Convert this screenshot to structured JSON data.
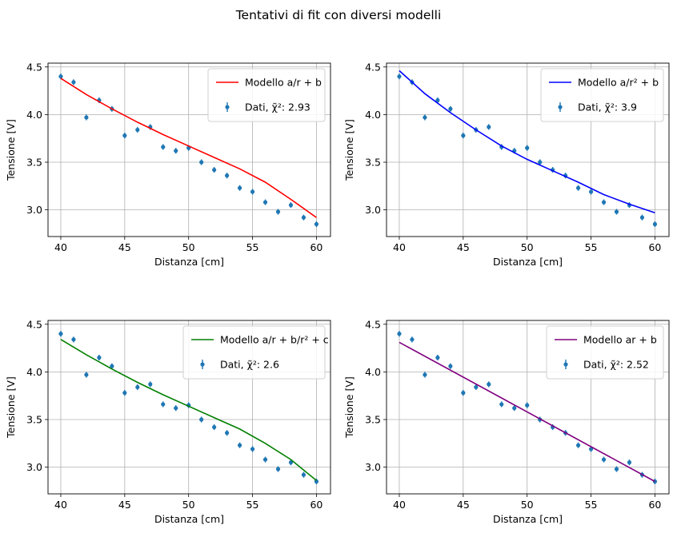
{
  "figure": {
    "suptitle": "Tentativi di fit con diversi modelli"
  },
  "chart_data": [
    {
      "type": "scatter",
      "xlabel": "Distanza [cm]",
      "ylabel": "Tensione [V]",
      "xlim": [
        39,
        61.1
      ],
      "ylim": [
        2.72,
        4.54
      ],
      "xticks": [
        "40",
        "45",
        "50",
        "55",
        "60"
      ],
      "yticks": [
        "3.0",
        "3.5",
        "4.0",
        "4.5"
      ],
      "grid": true,
      "legend_position": "top-right",
      "series": [
        {
          "name": "Dati, χ̃²: 2.93",
          "kind": "errorbar",
          "color": "#1f77b4",
          "x": [
            40,
            41,
            42,
            43,
            44,
            45,
            46,
            47,
            48,
            49,
            50,
            51,
            52,
            53,
            54,
            55,
            56,
            57,
            58,
            59,
            60
          ],
          "y": [
            4.4,
            4.34,
            3.97,
            4.15,
            4.06,
            3.78,
            3.84,
            3.87,
            3.66,
            3.62,
            3.65,
            3.5,
            3.42,
            3.36,
            3.23,
            3.19,
            3.08,
            2.98,
            3.05,
            2.92,
            2.85
          ],
          "yerr": 0.03
        },
        {
          "name": "Modello a/r + b",
          "kind": "line",
          "color": "#ff0000",
          "x": [
            40,
            42,
            44,
            46,
            48,
            50,
            52,
            54,
            56,
            58,
            60
          ],
          "y": [
            4.38,
            4.21,
            4.06,
            3.92,
            3.79,
            3.67,
            3.55,
            3.43,
            3.29,
            3.11,
            2.92
          ]
        }
      ]
    },
    {
      "type": "scatter",
      "xlabel": "Distanza [cm]",
      "ylabel": "Tensione [V]",
      "xlim": [
        39,
        61.1
      ],
      "ylim": [
        2.72,
        4.54
      ],
      "xticks": [
        "40",
        "45",
        "50",
        "55",
        "60"
      ],
      "yticks": [
        "3.0",
        "3.5",
        "4.0",
        "4.5"
      ],
      "grid": true,
      "legend_position": "top-right",
      "series": [
        {
          "name": "Dati, χ̃²: 3.9",
          "kind": "errorbar",
          "color": "#1f77b4",
          "x": [
            40,
            41,
            42,
            43,
            44,
            45,
            46,
            47,
            48,
            49,
            50,
            51,
            52,
            53,
            54,
            55,
            56,
            57,
            58,
            59,
            60
          ],
          "y": [
            4.4,
            4.34,
            3.97,
            4.15,
            4.06,
            3.78,
            3.84,
            3.87,
            3.66,
            3.62,
            3.65,
            3.5,
            3.42,
            3.36,
            3.23,
            3.19,
            3.08,
            2.98,
            3.05,
            2.92,
            2.85
          ],
          "yerr": 0.03
        },
        {
          "name": "Modello a/r² + b",
          "kind": "line",
          "color": "#0000ff",
          "x": [
            40,
            42,
            44,
            46,
            48,
            50,
            52,
            54,
            56,
            58,
            60
          ],
          "y": [
            4.46,
            4.22,
            4.02,
            3.84,
            3.67,
            3.53,
            3.41,
            3.29,
            3.16,
            3.06,
            2.97
          ]
        }
      ]
    },
    {
      "type": "scatter",
      "xlabel": "Distanza [cm]",
      "ylabel": "Tensione [V]",
      "xlim": [
        39,
        61.1
      ],
      "ylim": [
        2.72,
        4.54
      ],
      "xticks": [
        "40",
        "45",
        "50",
        "55",
        "60"
      ],
      "yticks": [
        "3.0",
        "3.5",
        "4.0",
        "4.5"
      ],
      "grid": true,
      "legend_position": "top-right",
      "series": [
        {
          "name": "Dati, χ̃²: 2.6",
          "kind": "errorbar",
          "color": "#1f77b4",
          "x": [
            40,
            41,
            42,
            43,
            44,
            45,
            46,
            47,
            48,
            49,
            50,
            51,
            52,
            53,
            54,
            55,
            56,
            57,
            58,
            59,
            60
          ],
          "y": [
            4.4,
            4.34,
            3.97,
            4.15,
            4.06,
            3.78,
            3.84,
            3.87,
            3.66,
            3.62,
            3.65,
            3.5,
            3.42,
            3.36,
            3.23,
            3.19,
            3.08,
            2.98,
            3.05,
            2.92,
            2.85
          ],
          "yerr": 0.03
        },
        {
          "name": "Modello a/r + b/r² + c",
          "kind": "line",
          "color": "#008000",
          "x": [
            40,
            42,
            44,
            46,
            48,
            50,
            52,
            54,
            56,
            58,
            60
          ],
          "y": [
            4.34,
            4.18,
            4.03,
            3.89,
            3.76,
            3.64,
            3.52,
            3.4,
            3.25,
            3.08,
            2.86
          ]
        }
      ]
    },
    {
      "type": "scatter",
      "xlabel": "Distanza [cm]",
      "ylabel": "Tensione [V]",
      "xlim": [
        39,
        61.1
      ],
      "ylim": [
        2.72,
        4.54
      ],
      "xticks": [
        "40",
        "45",
        "50",
        "55",
        "60"
      ],
      "yticks": [
        "3.0",
        "3.5",
        "4.0",
        "4.5"
      ],
      "grid": true,
      "legend_position": "top-right",
      "series": [
        {
          "name": "Dati, χ̃²: 2.52",
          "kind": "errorbar",
          "color": "#1f77b4",
          "x": [
            40,
            41,
            42,
            43,
            44,
            45,
            46,
            47,
            48,
            49,
            50,
            51,
            52,
            53,
            54,
            55,
            56,
            57,
            58,
            59,
            60
          ],
          "y": [
            4.4,
            4.34,
            3.97,
            4.15,
            4.06,
            3.78,
            3.84,
            3.87,
            3.66,
            3.62,
            3.65,
            3.5,
            3.42,
            3.36,
            3.23,
            3.19,
            3.08,
            2.98,
            3.05,
            2.92,
            2.85
          ],
          "yerr": 0.03
        },
        {
          "name": "Modello ar + b",
          "kind": "line",
          "color": "#800080",
          "x": [
            40,
            60
          ],
          "y": [
            4.31,
            2.85
          ]
        }
      ]
    }
  ]
}
